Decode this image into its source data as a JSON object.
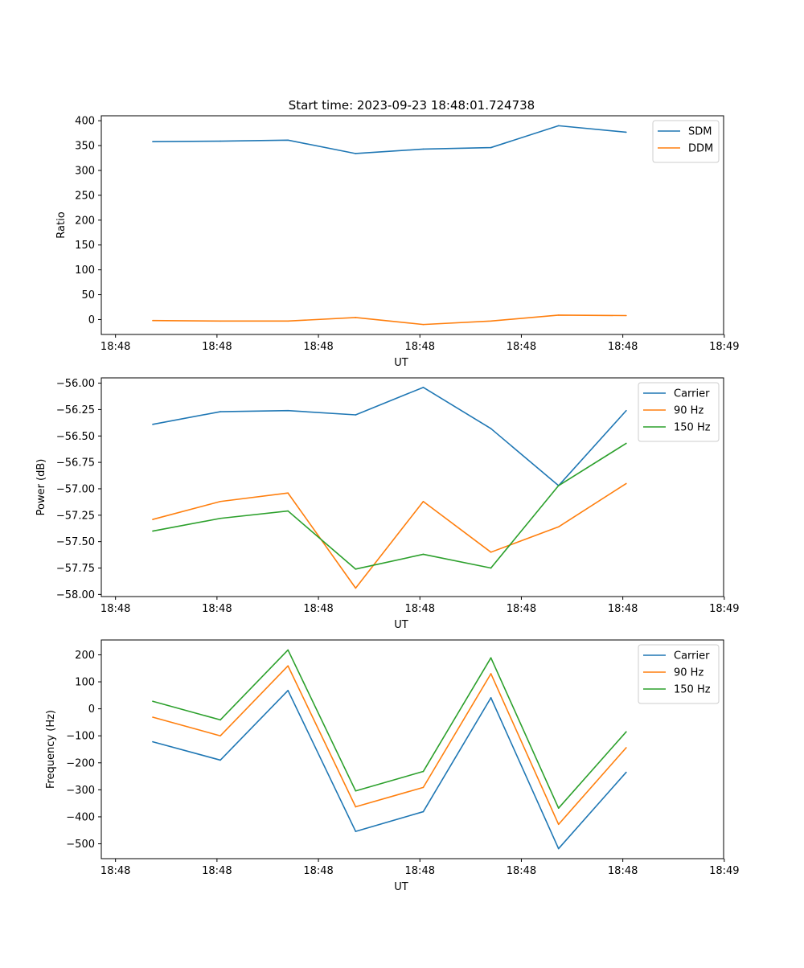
{
  "figure_title": "Start time: 2023-09-23 18:48:01.724738",
  "colors": {
    "blue": "#1f77b4",
    "orange": "#ff7f0e",
    "green": "#2ca02c"
  },
  "chart_data": [
    {
      "type": "line",
      "title": "Start time: 2023-09-23 18:48:01.724738",
      "xlabel": "UT",
      "ylabel": "Ratio",
      "x": [
        1,
        2,
        3,
        4,
        5,
        6,
        7,
        8
      ],
      "xlim": [
        0.24,
        9.44
      ],
      "x_ticks": [
        0.45,
        1.95,
        3.45,
        4.95,
        6.45,
        7.95,
        9.45
      ],
      "x_tick_labels": [
        "18:48",
        "18:48",
        "18:48",
        "18:48",
        "18:48",
        "18:48",
        "18:49"
      ],
      "ylim": [
        -30,
        410
      ],
      "y_ticks": [
        0,
        50,
        100,
        150,
        200,
        250,
        300,
        350,
        400
      ],
      "y_tick_labels": [
        "0",
        "50",
        "100",
        "150",
        "200",
        "250",
        "300",
        "350",
        "400"
      ],
      "legend": "top-right",
      "series": [
        {
          "name": "SDM",
          "color": "#1f77b4",
          "values": [
            358,
            359,
            361,
            334,
            343,
            346,
            390,
            377
          ]
        },
        {
          "name": "DDM",
          "color": "#ff7f0e",
          "values": [
            -2,
            -3,
            -3,
            4,
            -10,
            -3,
            9,
            8
          ]
        }
      ]
    },
    {
      "type": "line",
      "title": "",
      "xlabel": "UT",
      "ylabel": "Power (dB)",
      "x": [
        1,
        2,
        3,
        4,
        5,
        6,
        7,
        8
      ],
      "xlim": [
        0.24,
        9.44
      ],
      "x_ticks": [
        0.45,
        1.95,
        3.45,
        4.95,
        6.45,
        7.95,
        9.45
      ],
      "x_tick_labels": [
        "18:48",
        "18:48",
        "18:48",
        "18:48",
        "18:48",
        "18:48",
        "18:49"
      ],
      "ylim": [
        -58.02,
        -55.95
      ],
      "y_ticks": [
        -58.0,
        -57.75,
        -57.5,
        -57.25,
        -57.0,
        -56.75,
        -56.5,
        -56.25,
        -56.0
      ],
      "y_tick_labels": [
        "−58.00",
        "−57.75",
        "−57.50",
        "−57.25",
        "−57.00",
        "−56.75",
        "−56.50",
        "−56.25",
        "−56.00"
      ],
      "legend": "top-right",
      "series": [
        {
          "name": "Carrier",
          "color": "#1f77b4",
          "values": [
            -56.39,
            -56.27,
            -56.26,
            -56.3,
            -56.04,
            -56.43,
            -56.97,
            -56.26
          ]
        },
        {
          "name": "90 Hz",
          "color": "#ff7f0e",
          "values": [
            -57.29,
            -57.12,
            -57.04,
            -57.94,
            -57.12,
            -57.6,
            -57.36,
            -56.95
          ]
        },
        {
          "name": "150 Hz",
          "color": "#2ca02c",
          "values": [
            -57.4,
            -57.28,
            -57.21,
            -57.76,
            -57.62,
            -57.75,
            -56.97,
            -56.57
          ]
        }
      ]
    },
    {
      "type": "line",
      "title": "",
      "xlabel": "UT",
      "ylabel": "Frequency (Hz)",
      "x": [
        1,
        2,
        3,
        4,
        5,
        6,
        7,
        8
      ],
      "xlim": [
        0.24,
        9.44
      ],
      "x_ticks": [
        0.45,
        1.95,
        3.45,
        4.95,
        6.45,
        7.95,
        9.45
      ],
      "x_tick_labels": [
        "18:48",
        "18:48",
        "18:48",
        "18:48",
        "18:48",
        "18:48",
        "18:49"
      ],
      "ylim": [
        -555,
        255
      ],
      "y_ticks": [
        -500,
        -400,
        -300,
        -200,
        -100,
        0,
        100,
        200
      ],
      "y_tick_labels": [
        "−500",
        "−400",
        "−300",
        "−200",
        "−100",
        "0",
        "100",
        "200"
      ],
      "legend": "top-right",
      "series": [
        {
          "name": "Carrier",
          "color": "#1f77b4",
          "values": [
            -122,
            -190,
            68,
            -454,
            -381,
            41,
            -518,
            -235
          ]
        },
        {
          "name": "90 Hz",
          "color": "#ff7f0e",
          "values": [
            -31,
            -100,
            159,
            -363,
            -291,
            130,
            -428,
            -144
          ]
        },
        {
          "name": "150 Hz",
          "color": "#2ca02c",
          "values": [
            28,
            -41,
            218,
            -304,
            -232,
            189,
            -368,
            -85
          ]
        }
      ]
    }
  ]
}
